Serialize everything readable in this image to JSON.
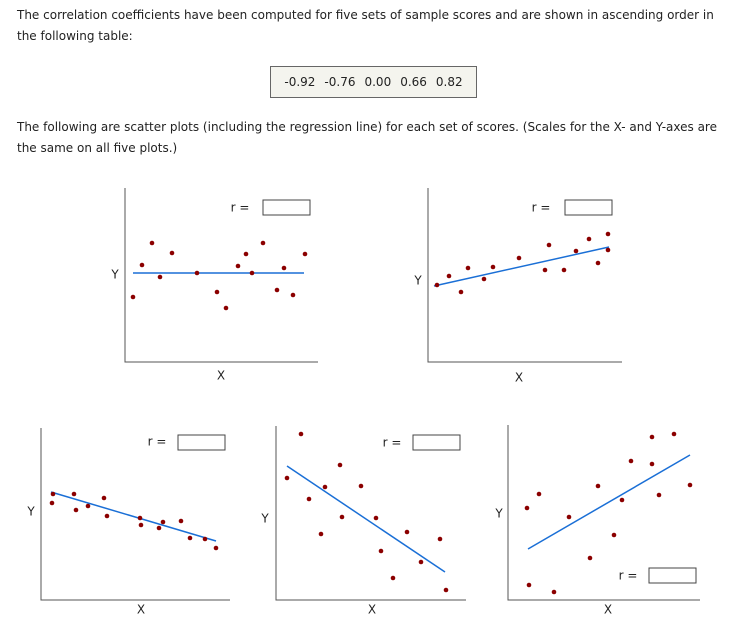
{
  "intro": "The correlation coefficients have been computed for five sets of sample scores and are shown in ascending order in the following table:",
  "table": {
    "values": [
      "-0.92",
      "-0.76",
      "0.00",
      "0.66",
      "0.82"
    ]
  },
  "description": "The following are scatter plots (including the regression line) for each set of scores. (Scales for the X- and Y-axes are the same on all five plots.)",
  "plots": [
    {
      "y_label": "Y",
      "x_label": "X",
      "r_label": "r ="
    },
    {
      "y_label": "Y",
      "x_label": "X",
      "r_label": "r ="
    },
    {
      "y_label": "Y",
      "x_label": "X",
      "r_label": "r ="
    },
    {
      "y_label": "Y",
      "x_label": "X",
      "r_label": "r ="
    },
    {
      "y_label": "Y",
      "x_label": "X",
      "r_label": "r ="
    }
  ]
}
